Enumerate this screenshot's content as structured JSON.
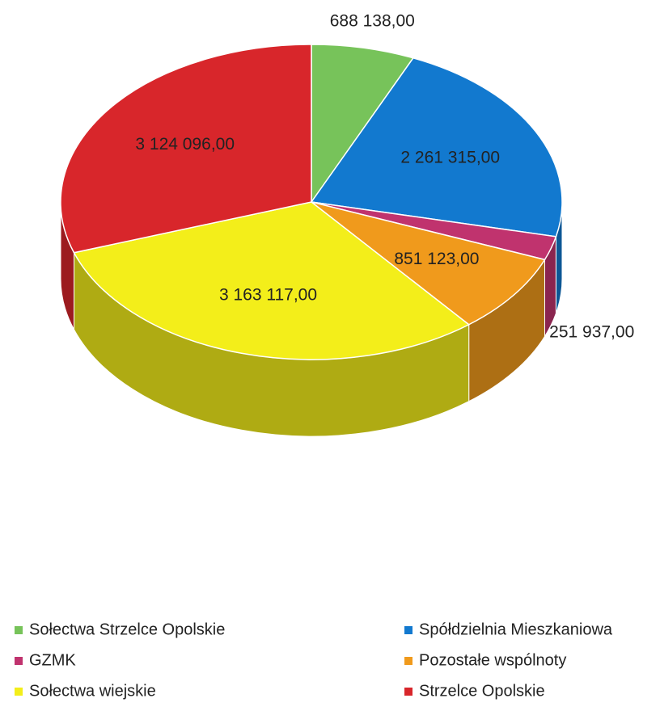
{
  "chart_data": {
    "type": "pie",
    "categories": [
      "Sołectwa Strzelce Opolskie",
      "Spółdzielnia Mieszkaniowa",
      "GZMK",
      "Pozostałe wspólnoty",
      "Sołectwa wiejskie",
      "Strzelce Opolskie"
    ],
    "values": [
      688138,
      2261315,
      251937,
      851123,
      3163117,
      3124096
    ],
    "value_labels": [
      "688 138,00",
      "2 261 315,00",
      "251 937,00",
      "851 123,00",
      "3 163 117,00",
      "3 124 096,00"
    ],
    "colors": [
      "#77c35a",
      "#1279cf",
      "#c0336e",
      "#f09a1c",
      "#f3ee1a",
      "#d8262b"
    ],
    "legend": "bottom"
  }
}
